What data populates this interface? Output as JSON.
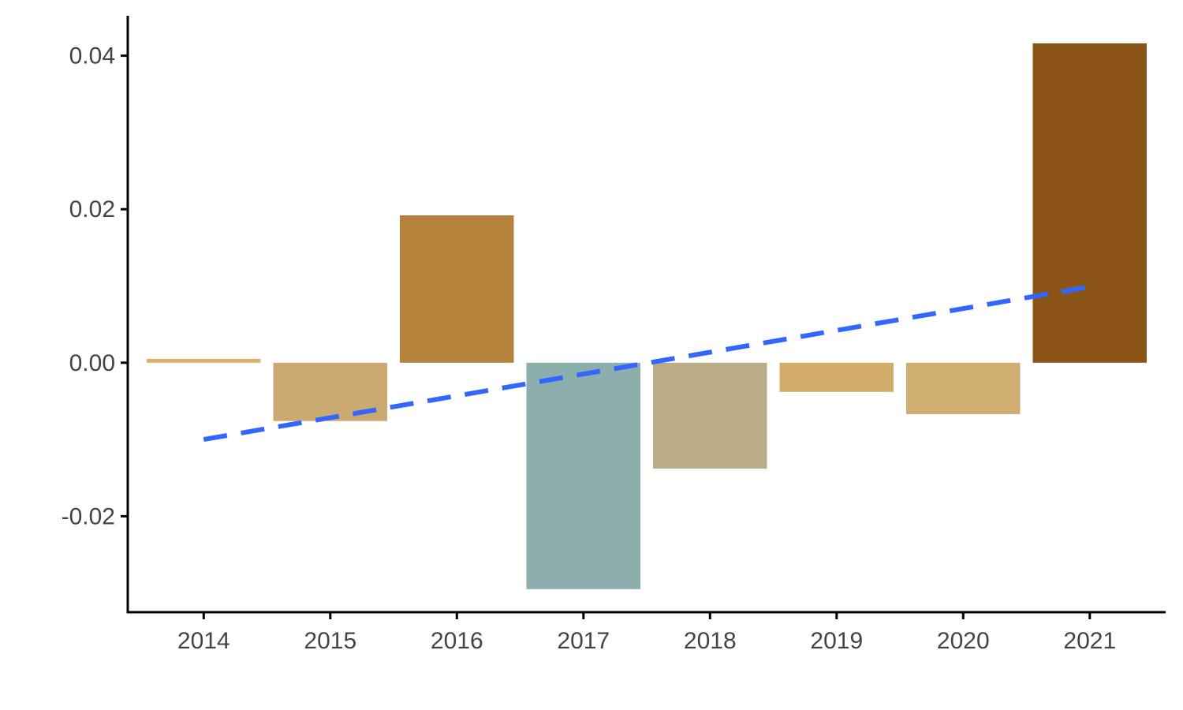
{
  "chart_data": {
    "type": "bar",
    "title": "",
    "xlabel": "",
    "ylabel": "",
    "categories": [
      "2014",
      "2015",
      "2016",
      "2017",
      "2018",
      "2019",
      "2020",
      "2021"
    ],
    "values": [
      0.0005,
      -0.0076,
      0.0192,
      -0.0295,
      -0.0138,
      -0.0038,
      -0.0067,
      0.0416
    ],
    "bar_colors": [
      "#D8B26E",
      "#CBAA72",
      "#B5823C",
      "#8CAEAC",
      "#B9AC86",
      "#D4AC6A",
      "#CFAE72",
      "#8B5518"
    ],
    "ylim": [
      -0.0325,
      0.0452
    ],
    "yticks": [
      -0.02,
      0.0,
      0.02,
      0.04
    ],
    "ytick_labels": [
      "-0.02",
      "0.00",
      "0.02",
      "0.04"
    ],
    "trend_line": {
      "style": "dashed",
      "color": "#3366FF",
      "start": {
        "x": "2014",
        "y": -0.01
      },
      "end": {
        "x": "2021",
        "y": 0.0099
      }
    },
    "grid": false,
    "legend": "none"
  }
}
